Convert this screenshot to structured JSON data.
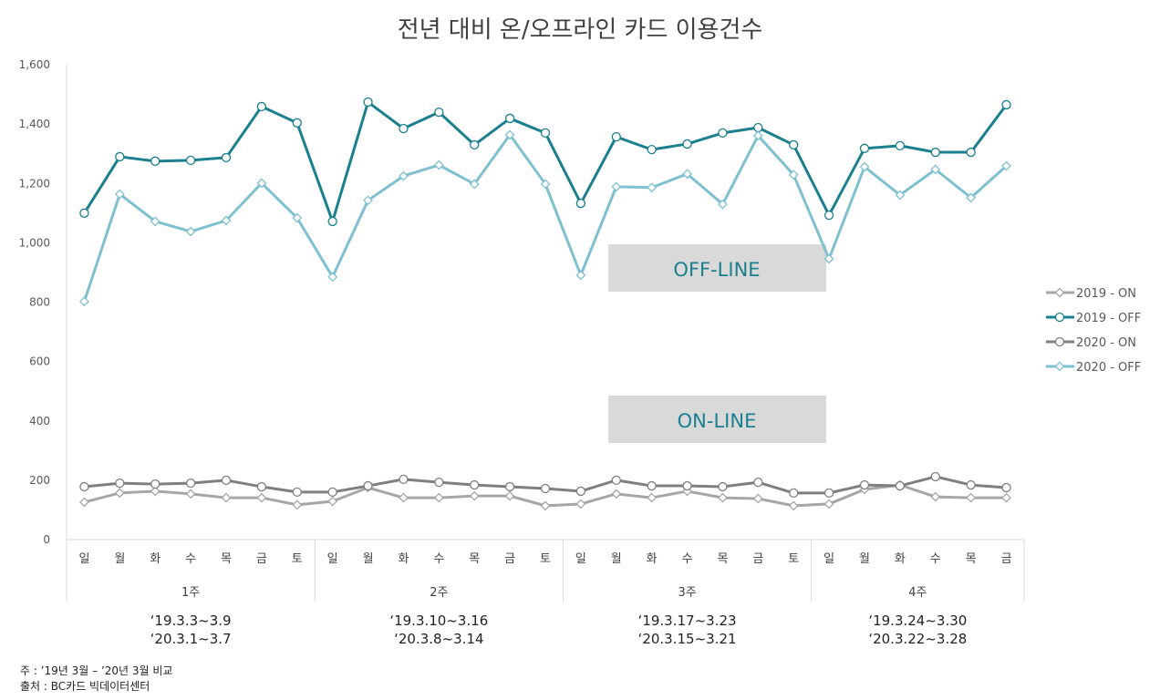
{
  "chart_data": {
    "type": "line",
    "title": "전년 대비 온/오프라인 카드 이용건수",
    "ylim": [
      0,
      1600
    ],
    "yticks": [
      0,
      200,
      400,
      600,
      800,
      1000,
      1200,
      1400,
      1600
    ],
    "ytick_labels": [
      "0",
      "200",
      "400",
      "600",
      "800",
      "1,000",
      "1,200",
      "1,400",
      "1,600"
    ],
    "categories": [
      "일",
      "월",
      "화",
      "수",
      "목",
      "금",
      "토",
      "일",
      "월",
      "화",
      "수",
      "목",
      "금",
      "토",
      "일",
      "월",
      "화",
      "수",
      "목",
      "금",
      "토",
      "일",
      "월",
      "화",
      "수",
      "목",
      "금"
    ],
    "groups": [
      {
        "label": "1주",
        "count": 7,
        "dates": [
          "‘19.3.3~3.9",
          "‘20.3.1~3.7"
        ]
      },
      {
        "label": "2주",
        "count": 7,
        "dates": [
          "‘19.3.10~3.16",
          "‘20.3.8~3.14"
        ]
      },
      {
        "label": "3주",
        "count": 7,
        "dates": [
          "‘19.3.17~3.23",
          "‘20.3.15~3.21"
        ]
      },
      {
        "label": "4주",
        "count": 6,
        "dates": [
          "‘19.3.24~3.30",
          "‘20.3.22~3.28"
        ]
      }
    ],
    "series": [
      {
        "name": "2019 - ON",
        "color": "#a6a6a6",
        "marker": "diamond",
        "values": [
          126,
          157,
          163,
          154,
          141,
          141,
          117,
          129,
          175,
          141,
          141,
          147,
          147,
          114,
          120,
          154,
          141,
          163,
          141,
          138,
          114,
          120,
          169,
          184,
          144,
          141,
          141
        ]
      },
      {
        "name": "2019 - OFF",
        "color": "#1a7f8e",
        "marker": "circle",
        "values": [
          1100,
          1290,
          1275,
          1278,
          1287,
          1459,
          1404,
          1072,
          1474,
          1385,
          1440,
          1330,
          1419,
          1370,
          1133,
          1357,
          1314,
          1333,
          1370,
          1388,
          1330,
          1093,
          1318,
          1327,
          1305,
          1305,
          1465
        ]
      },
      {
        "name": "2020 - ON",
        "color": "#7f7f7f",
        "marker": "circle",
        "values": [
          178,
          190,
          187,
          190,
          200,
          178,
          160,
          160,
          181,
          203,
          193,
          184,
          178,
          172,
          163,
          200,
          181,
          181,
          178,
          193,
          157,
          157,
          184,
          181,
          212,
          184,
          175
        ]
      },
      {
        "name": "2020 - OFF",
        "color": "#7fc0d0",
        "marker": "diamond",
        "values": [
          802,
          1164,
          1072,
          1038,
          1075,
          1201,
          1084,
          885,
          1143,
          1225,
          1262,
          1198,
          1364,
          1198,
          891,
          1189,
          1186,
          1232,
          1130,
          1361,
          1229,
          946,
          1256,
          1161,
          1247,
          1152,
          1259
        ]
      }
    ],
    "legend": "right",
    "annotations": [
      "OFF-LINE",
      "ON-LINE"
    ]
  },
  "notes": [
    "주 : ’19년 3월 – ’20년 3월 비교",
    "출처 : BC카드 빅데이터센터"
  ]
}
